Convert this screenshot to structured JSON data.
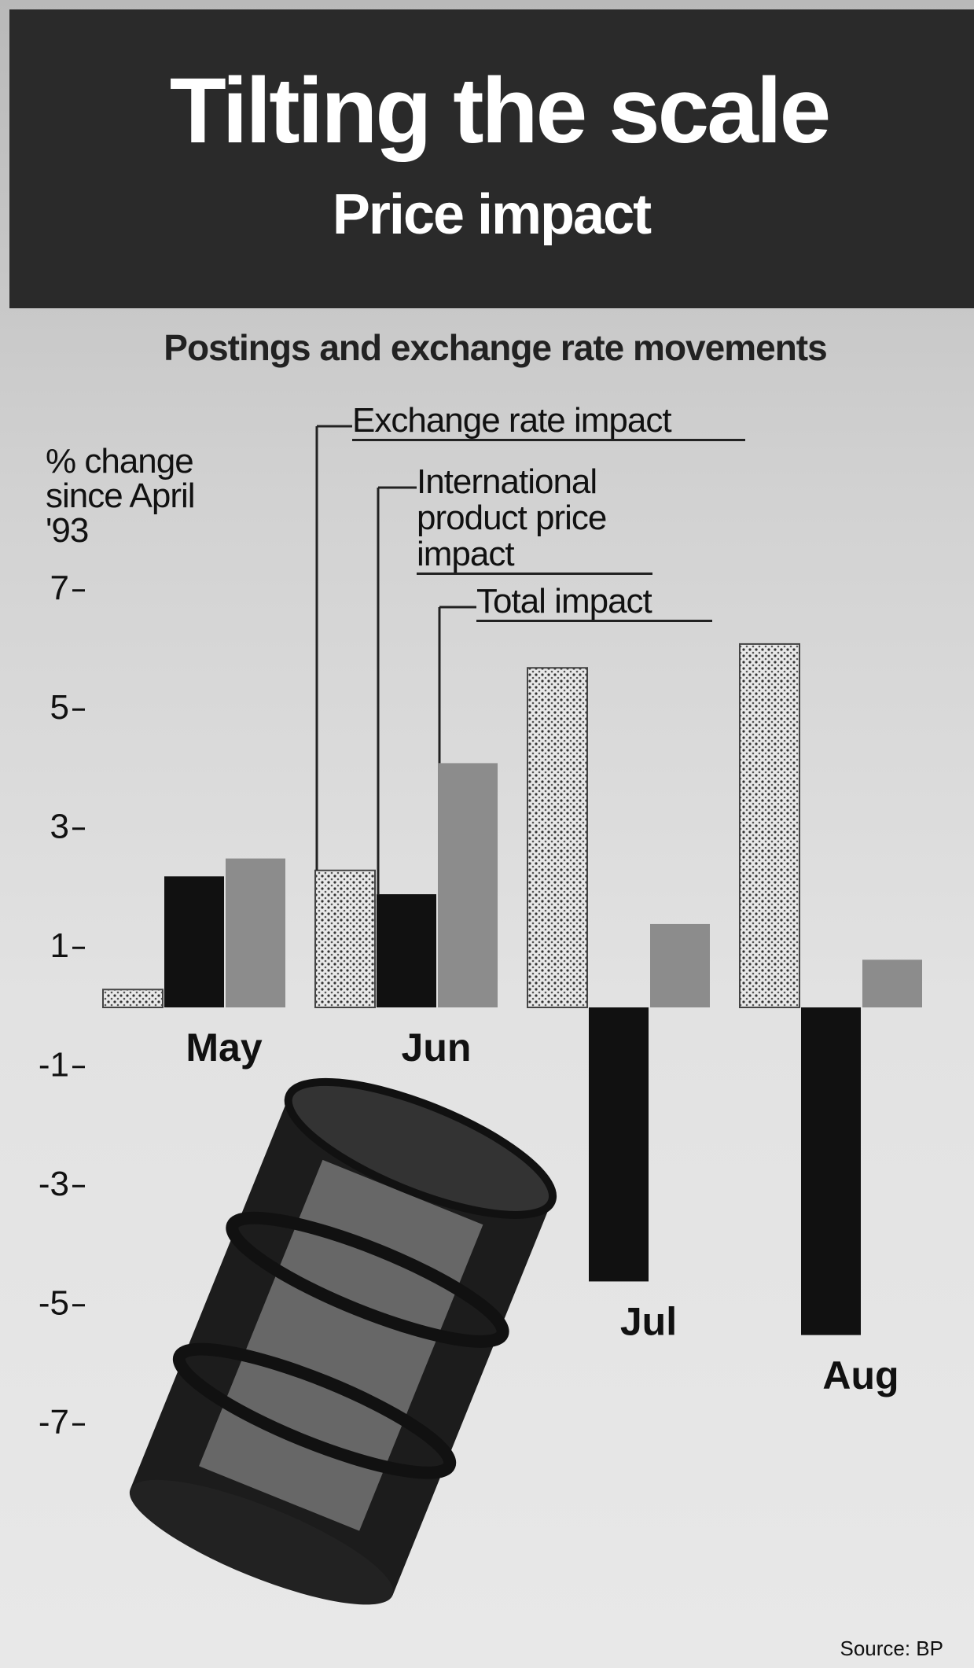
{
  "chart_data": {
    "type": "bar",
    "title": "Tilting the scale",
    "subtitle": "Price impact",
    "chart_title": "Postings and exchange rate movements",
    "y_axis_label": "% change since April '93",
    "source": "Source: BP",
    "categories": [
      "May",
      "Jun",
      "Jul",
      "Aug"
    ],
    "series": [
      {
        "name": "Exchange rate impact",
        "color": "#e4e4e4",
        "values": [
          0.3,
          2.3,
          5.7,
          6.1
        ]
      },
      {
        "name": "International product price impact",
        "color": "#111111",
        "values": [
          2.2,
          1.9,
          -4.6,
          -5.5
        ]
      },
      {
        "name": "Total impact",
        "color": "#8c8c8c",
        "values": [
          2.5,
          4.1,
          1.4,
          0.8
        ]
      }
    ],
    "ylim": [
      -8,
      8
    ],
    "yticks": [
      7,
      5,
      3,
      1,
      -1,
      -3,
      -5,
      -7
    ]
  }
}
